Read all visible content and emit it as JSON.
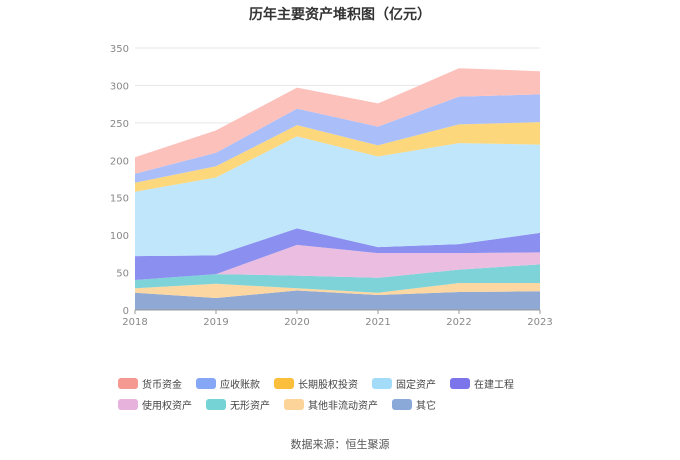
{
  "chart_data": {
    "type": "area",
    "stacked": true,
    "title": "历年主要资产堆积图（亿元）",
    "categories": [
      "2018",
      "2019",
      "2020",
      "2021",
      "2022",
      "2023"
    ],
    "ylim": [
      0,
      350
    ],
    "yticks": [
      0,
      50,
      100,
      150,
      200,
      250,
      300,
      350
    ],
    "series": [
      {
        "name": "其它",
        "color": "#8fa9d4",
        "values": [
          23,
          16,
          26,
          20,
          24,
          25
        ]
      },
      {
        "name": "其他非流动资产",
        "color": "#fcd7a1",
        "values": [
          6,
          19,
          3,
          3,
          12,
          11
        ]
      },
      {
        "name": "无形资产",
        "color": "#7ed3d8",
        "values": [
          11,
          13,
          17,
          20,
          18,
          25
        ]
      },
      {
        "name": "使用权资产",
        "color": "#ebbde0",
        "values": [
          0,
          0,
          41,
          33,
          22,
          16
        ]
      },
      {
        "name": "在建工程",
        "color": "#8a8ff0",
        "values": [
          32,
          25,
          22,
          8,
          12,
          26
        ]
      },
      {
        "name": "固定资产",
        "color": "#bfe6fb",
        "values": [
          86,
          104,
          123,
          121,
          135,
          118
        ]
      },
      {
        "name": "长期股权投资",
        "color": "#fdd77c",
        "values": [
          12,
          15,
          15,
          15,
          25,
          30
        ]
      },
      {
        "name": "应收账款",
        "color": "#aabff9",
        "values": [
          12,
          18,
          22,
          25,
          37,
          37
        ]
      },
      {
        "name": "货币资金",
        "color": "#fdc1bc",
        "values": [
          22,
          30,
          28,
          31,
          38,
          31
        ]
      }
    ]
  },
  "legend": [
    {
      "label": "货币资金",
      "color": "#f59a92"
    },
    {
      "label": "应收账款",
      "color": "#86a7f5"
    },
    {
      "label": "长期股权投资",
      "color": "#fbbf3c"
    },
    {
      "label": "固定资产",
      "color": "#a3dcf8"
    },
    {
      "label": "在建工程",
      "color": "#7b74ea"
    },
    {
      "label": "使用权资产",
      "color": "#e7b3dc"
    },
    {
      "label": "无形资产",
      "color": "#75d3d6"
    },
    {
      "label": "其他非流动资产",
      "color": "#fcd49a"
    },
    {
      "label": "其它",
      "color": "#8aa8d8"
    }
  ],
  "source": "数据来源：恒生聚源"
}
